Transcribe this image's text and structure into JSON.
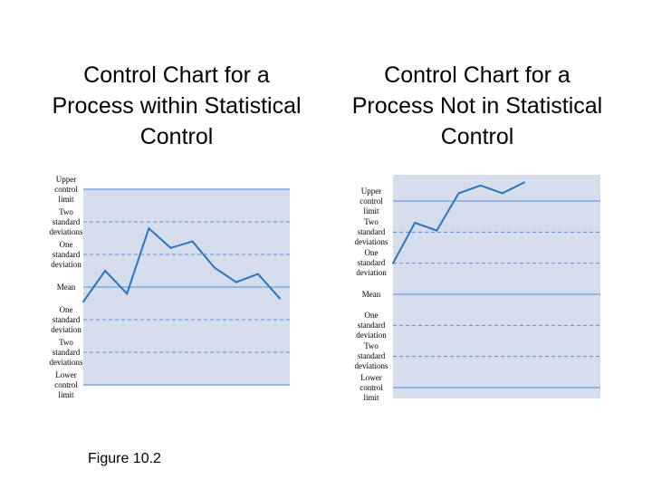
{
  "chart_data": [
    {
      "type": "line",
      "title": [
        "Control Chart for a",
        "Process within Statistical",
        "Control"
      ],
      "levels": [
        {
          "key": "ucl",
          "label": [
            "Upper",
            "control",
            "limit"
          ],
          "value": 3,
          "style": "solid"
        },
        {
          "key": "p2sd",
          "label": [
            "Two",
            "standard",
            "deviations"
          ],
          "value": 2,
          "style": "dashed"
        },
        {
          "key": "p1sd",
          "label": [
            "One",
            "standard",
            "deviation"
          ],
          "value": 1,
          "style": "dashed"
        },
        {
          "key": "mean",
          "label": [
            "Mean"
          ],
          "value": 0,
          "style": "solid"
        },
        {
          "key": "m1sd",
          "label": [
            "One",
            "standard",
            "deviation"
          ],
          "value": -1,
          "style": "dashed"
        },
        {
          "key": "m2sd",
          "label": [
            "Two",
            "standard",
            "deviations"
          ],
          "value": -2,
          "style": "dashed"
        },
        {
          "key": "lcl",
          "label": [
            "Lower",
            "control",
            "limit"
          ],
          "value": -3,
          "style": "solid"
        }
      ],
      "ylim": [
        -3.1,
        3.1
      ],
      "x": [
        0,
        1,
        2,
        3,
        4,
        5,
        6,
        7,
        8,
        9
      ],
      "values": [
        -0.45,
        0.5,
        -0.2,
        1.8,
        1.2,
        1.4,
        0.6,
        0.15,
        0.4,
        -0.35
      ],
      "colors": {
        "line": "#2e75b6",
        "panel": "#d5dcec",
        "grid": "#5b8fd4"
      }
    },
    {
      "type": "line",
      "title": [
        "Control Chart for a",
        "Process Not in Statistical",
        "Control"
      ],
      "levels": [
        {
          "key": "ucl",
          "label": [
            "Upper",
            "control",
            "limit"
          ],
          "value": 3,
          "style": "solid"
        },
        {
          "key": "p2sd",
          "label": [
            "Two",
            "standard",
            "deviations"
          ],
          "value": 2,
          "style": "dashed"
        },
        {
          "key": "p1sd",
          "label": [
            "One",
            "standard",
            "deviation"
          ],
          "value": 1,
          "style": "dashed"
        },
        {
          "key": "mean",
          "label": [
            "Mean"
          ],
          "value": 0,
          "style": "solid"
        },
        {
          "key": "m1sd",
          "label": [
            "One",
            "standard",
            "deviation"
          ],
          "value": -1,
          "style": "dashed"
        },
        {
          "key": "m2sd",
          "label": [
            "Two",
            "standard",
            "deviations"
          ],
          "value": -2,
          "style": "dashed"
        },
        {
          "key": "lcl",
          "label": [
            "Lower",
            "control",
            "limit"
          ],
          "value": -3,
          "style": "solid"
        }
      ],
      "ylim": [
        -3.6,
        3.2
      ],
      "x": [
        0,
        1,
        2,
        3,
        4,
        5,
        6
      ],
      "values": [
        1.0,
        2.3,
        2.05,
        3.25,
        3.5,
        3.25,
        3.6
      ],
      "colors": {
        "line": "#2e75b6",
        "panel": "#d5dcec",
        "grid": "#5b8fd4"
      }
    }
  ],
  "caption": "Figure 10.2"
}
